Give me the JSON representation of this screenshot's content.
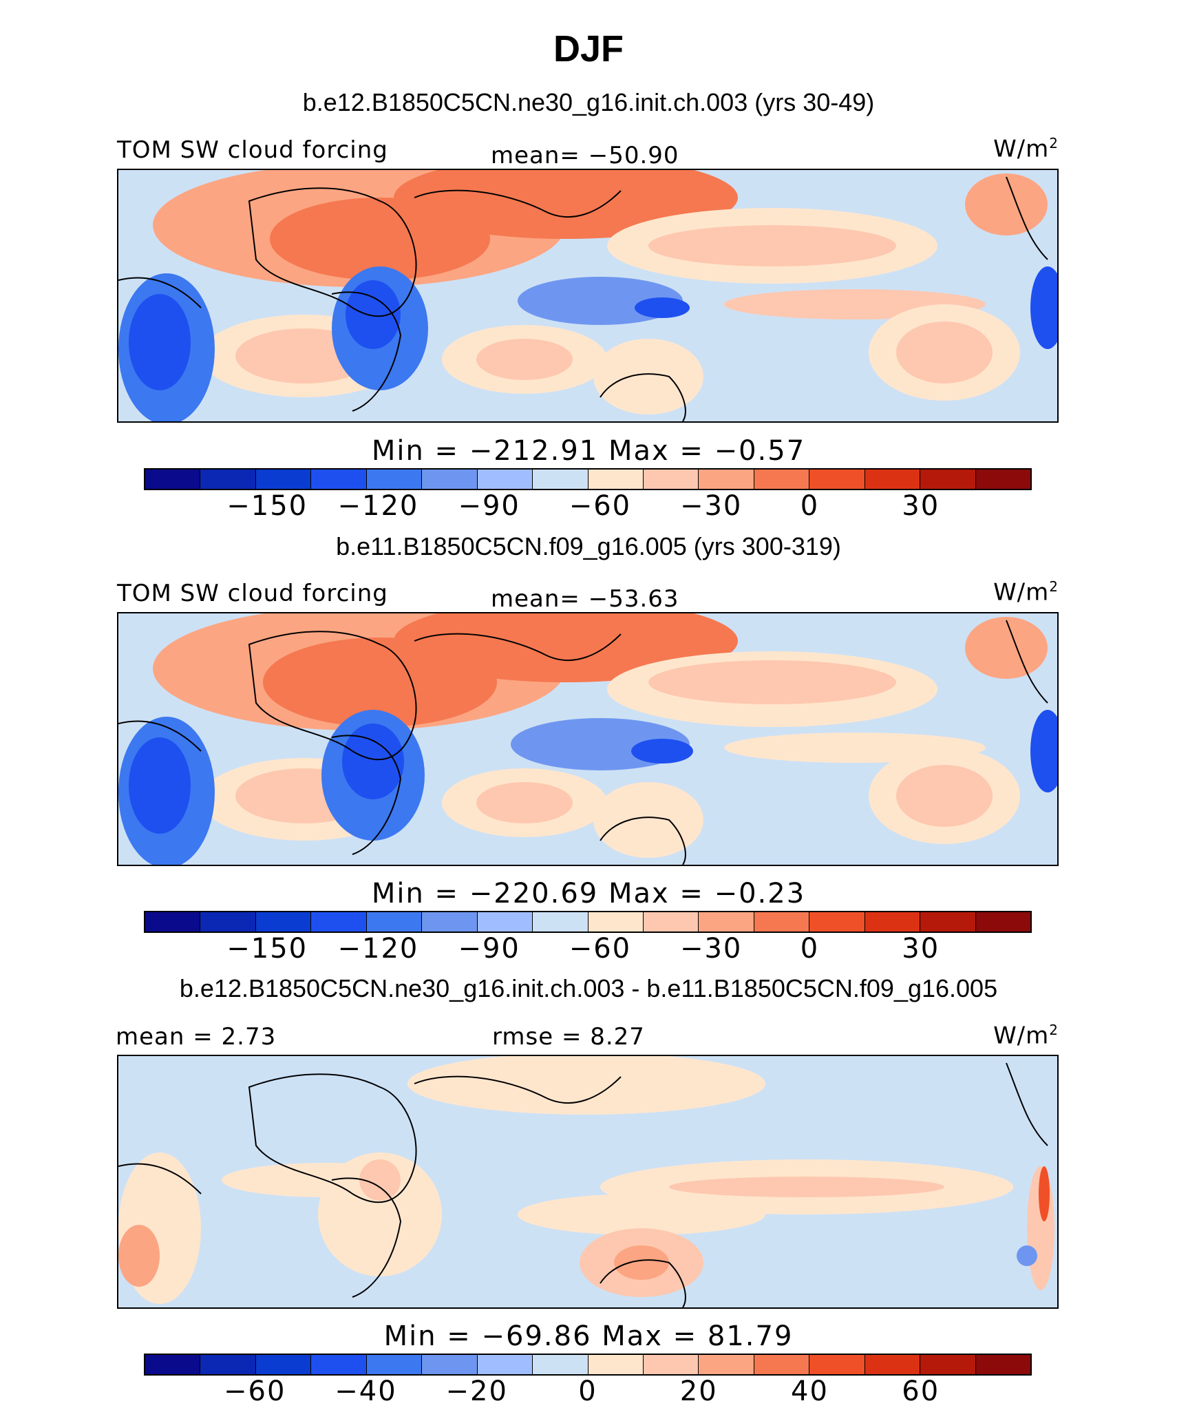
{
  "title": "DJF",
  "colors": {
    "full": [
      "#0a0a8c",
      "#0a28b4",
      "#0a3cd2",
      "#1e50f0",
      "#3c78f0",
      "#6e96f0",
      "#a0beff",
      "#cde1f5",
      "#fee6cd",
      "#fdc8af",
      "#fca582",
      "#f57850",
      "#f05028",
      "#dc3214",
      "#b4190a",
      "#8c0a0a"
    ],
    "diff": [
      "#0a0a8c",
      "#0a28b4",
      "#0a3cd2",
      "#1e50f0",
      "#3c78f0",
      "#6e96f0",
      "#a0beff",
      "#cde1f5",
      "#fee6cd",
      "#fdc8af",
      "#fca582",
      "#f57850",
      "#f05028",
      "#dc3214",
      "#b4190a",
      "#8c0a0a"
    ]
  },
  "panels": [
    {
      "case_title": "b.e12.B1850C5CN.ne30_g16.init.ch.003 (yrs 30-49)",
      "left_label": "TOM  SW  cloud  forcing",
      "center_label": "mean=  −50.90",
      "units": "W/m",
      "units_sup": "2",
      "minmax": "Min  =  −212.91  Max  =   −0.57",
      "colorbar_ticks": [
        "−150",
        "−120",
        "−90",
        "−60",
        "−30",
        "0",
        "30"
      ]
    },
    {
      "case_title": "b.e11.B1850C5CN.f09_g16.005 (yrs 300-319)",
      "left_label": "TOM  SW  cloud  forcing",
      "center_label": "mean=  −53.63",
      "units": "W/m",
      "units_sup": "2",
      "minmax": "Min  =  −220.69  Max  =   −0.23",
      "colorbar_ticks": [
        "−150",
        "−120",
        "−90",
        "−60",
        "−30",
        "0",
        "30"
      ]
    },
    {
      "case_title": "b.e12.B1850C5CN.ne30_g16.init.ch.003 - b.e11.B1850C5CN.f09_g16.005",
      "left_label": "mean  =    2.73",
      "center_label": "rmse  =    8.27",
      "units": "W/m",
      "units_sup": "2",
      "minmax": "Min  =  −69.86  Max  =   81.79",
      "colorbar_ticks": [
        "−60",
        "−40",
        "−20",
        "0",
        "20",
        "40",
        "60"
      ]
    }
  ]
}
